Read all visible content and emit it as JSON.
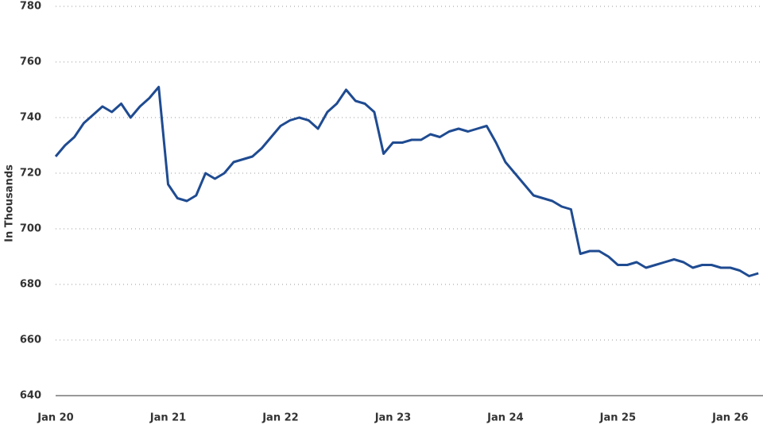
{
  "chart_data": {
    "type": "line",
    "y_label": "In Thousands",
    "categories": [
      "Jan 20",
      null,
      null,
      null,
      null,
      null,
      null,
      null,
      null,
      null,
      null,
      null,
      "Jan 21",
      null,
      null,
      null,
      null,
      null,
      null,
      null,
      null,
      null,
      null,
      null,
      "Jan 22",
      null,
      null,
      null,
      null,
      null,
      null,
      null,
      null,
      null,
      null,
      null,
      "Jan 23",
      null,
      null,
      null,
      null,
      null,
      null,
      null,
      null,
      null,
      null,
      null,
      "Jan 24",
      null,
      null,
      null,
      null,
      null,
      null,
      null,
      null,
      null,
      null,
      null,
      "Jan 25",
      null,
      null,
      null,
      null,
      null,
      null,
      null,
      null,
      null,
      null,
      null,
      "Jan 26",
      null,
      null,
      null
    ],
    "series": [
      {
        "color": "#1f4b91",
        "values": [
          726,
          730,
          733,
          738,
          741,
          744,
          742,
          745,
          740,
          744,
          747,
          751,
          716,
          711,
          710,
          712,
          720,
          718,
          720,
          724,
          725,
          726,
          729,
          733,
          737,
          739,
          740,
          739,
          736,
          742,
          745,
          750,
          746,
          745,
          742,
          727,
          731,
          731,
          732,
          732,
          734,
          733,
          735,
          736,
          735,
          736,
          737,
          731,
          724,
          720,
          716,
          712,
          711,
          710,
          708,
          707,
          691,
          692,
          692,
          690,
          687,
          687,
          688,
          686,
          687,
          688,
          689,
          688,
          686,
          687,
          687,
          686,
          686,
          685,
          683,
          684
        ]
      }
    ],
    "ylim": [
      640,
      780
    ],
    "yticks": [
      640,
      660,
      680,
      700,
      720,
      740,
      760,
      780
    ],
    "grid": true
  }
}
